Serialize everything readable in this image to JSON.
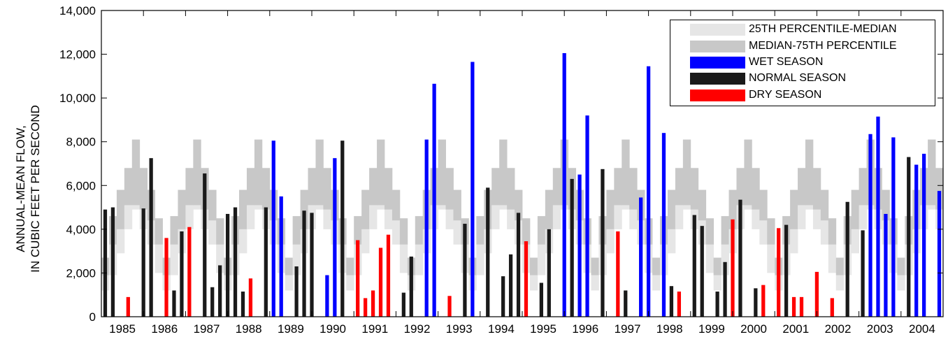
{
  "chart_data": {
    "type": "bar",
    "title": "",
    "xlabel": "",
    "ylabel_lines": [
      "ANNUAL-MEAN FLOW,",
      "IN CUBIC FEET PER SECOND"
    ],
    "ylim": [
      0,
      14000
    ],
    "yticks": [
      "0",
      "2,000",
      "4,000",
      "6,000",
      "8,000",
      "10,000",
      "12,000",
      "14,000"
    ],
    "x_labels": [
      "1985",
      "1986",
      "1987",
      "1988",
      "1989",
      "1990",
      "1991",
      "1992",
      "1993",
      "1994",
      "1995",
      "1996",
      "1997",
      "1998",
      "1999",
      "2000",
      "2001",
      "2002",
      "2003",
      "2004"
    ],
    "percentile_bands": {
      "p25": [
        1200,
        1900,
        2900,
        4000,
        4900,
        4000,
        3300,
        2000
      ],
      "median": [
        1900,
        3300,
        4000,
        5100,
        5100,
        4900,
        4400,
        3300
      ],
      "p75": [
        2700,
        4600,
        5800,
        6800,
        8100,
        6800,
        5800,
        4500
      ]
    },
    "series": [
      {
        "name": "WET SEASON",
        "color": "#0000ff"
      },
      {
        "name": "NORMAL SEASON",
        "color": "#1a1a1a"
      },
      {
        "name": "DRY SEASON",
        "color": "#ff0000"
      }
    ],
    "band_legend": [
      {
        "name": "25TH PERCENTILE-MEDIAN",
        "color": "#e6e6e6"
      },
      {
        "name": "MEDIAN-75TH PERCENTILE",
        "color": "#c8c8c8"
      }
    ],
    "bars": [
      {
        "v": 4900,
        "s": 1
      },
      {
        "v": 5000,
        "s": 1
      },
      {
        "v": 0,
        "s": 1
      },
      {
        "v": 900,
        "s": 2
      },
      {
        "v": 0,
        "s": 1
      },
      {
        "v": 4950,
        "s": 1
      },
      {
        "v": 7250,
        "s": 1
      },
      {
        "v": 0,
        "s": 1
      },
      {
        "v": 3600,
        "s": 2
      },
      {
        "v": 1200,
        "s": 1
      },
      {
        "v": 3900,
        "s": 1
      },
      {
        "v": 4100,
        "s": 2
      },
      {
        "v": 0,
        "s": 1
      },
      {
        "v": 6550,
        "s": 1
      },
      {
        "v": 1350,
        "s": 1
      },
      {
        "v": 2350,
        "s": 1
      },
      {
        "v": 4700,
        "s": 1
      },
      {
        "v": 5000,
        "s": 1
      },
      {
        "v": 1150,
        "s": 1
      },
      {
        "v": 1750,
        "s": 2
      },
      {
        "v": 0,
        "s": 1
      },
      {
        "v": 5000,
        "s": 1
      },
      {
        "v": 8050,
        "s": 0
      },
      {
        "v": 5500,
        "s": 0
      },
      {
        "v": 0,
        "s": 1
      },
      {
        "v": 2300,
        "s": 1
      },
      {
        "v": 4850,
        "s": 1
      },
      {
        "v": 4750,
        "s": 1
      },
      {
        "v": 0,
        "s": 1
      },
      {
        "v": 1900,
        "s": 0
      },
      {
        "v": 7250,
        "s": 0
      },
      {
        "v": 8050,
        "s": 1
      },
      {
        "v": 0,
        "s": 1
      },
      {
        "v": 3500,
        "s": 2
      },
      {
        "v": 850,
        "s": 2
      },
      {
        "v": 1200,
        "s": 2
      },
      {
        "v": 3150,
        "s": 2
      },
      {
        "v": 3750,
        "s": 2
      },
      {
        "v": 0,
        "s": 1
      },
      {
        "v": 1100,
        "s": 1
      },
      {
        "v": 2750,
        "s": 1
      },
      {
        "v": 0,
        "s": 1
      },
      {
        "v": 8100,
        "s": 0
      },
      {
        "v": 10650,
        "s": 0
      },
      {
        "v": 0,
        "s": 1
      },
      {
        "v": 950,
        "s": 2
      },
      {
        "v": 0,
        "s": 1
      },
      {
        "v": 4250,
        "s": 1
      },
      {
        "v": 11650,
        "s": 0
      },
      {
        "v": 0,
        "s": 1
      },
      {
        "v": 5900,
        "s": 1
      },
      {
        "v": 0,
        "s": 1
      },
      {
        "v": 1850,
        "s": 1
      },
      {
        "v": 2850,
        "s": 1
      },
      {
        "v": 4750,
        "s": 1
      },
      {
        "v": 3450,
        "s": 2
      },
      {
        "v": 0,
        "s": 1
      },
      {
        "v": 1550,
        "s": 1
      },
      {
        "v": 4000,
        "s": 1
      },
      {
        "v": 0,
        "s": 1
      },
      {
        "v": 12050,
        "s": 0
      },
      {
        "v": 6300,
        "s": 1
      },
      {
        "v": 6500,
        "s": 0
      },
      {
        "v": 9200,
        "s": 0
      },
      {
        "v": 0,
        "s": 1
      },
      {
        "v": 6750,
        "s": 1
      },
      {
        "v": 0,
        "s": 1
      },
      {
        "v": 3900,
        "s": 2
      },
      {
        "v": 1200,
        "s": 1
      },
      {
        "v": 0,
        "s": 1
      },
      {
        "v": 5450,
        "s": 0
      },
      {
        "v": 11450,
        "s": 0
      },
      {
        "v": 0,
        "s": 1
      },
      {
        "v": 8400,
        "s": 0
      },
      {
        "v": 1400,
        "s": 1
      },
      {
        "v": 1150,
        "s": 2
      },
      {
        "v": 0,
        "s": 1
      },
      {
        "v": 4650,
        "s": 1
      },
      {
        "v": 4150,
        "s": 1
      },
      {
        "v": 0,
        "s": 1
      },
      {
        "v": 1150,
        "s": 1
      },
      {
        "v": 2500,
        "s": 1
      },
      {
        "v": 4450,
        "s": 2
      },
      {
        "v": 5350,
        "s": 1
      },
      {
        "v": 0,
        "s": 1
      },
      {
        "v": 1300,
        "s": 1
      },
      {
        "v": 1450,
        "s": 2
      },
      {
        "v": 0,
        "s": 1
      },
      {
        "v": 4050,
        "s": 2
      },
      {
        "v": 4200,
        "s": 1
      },
      {
        "v": 900,
        "s": 2
      },
      {
        "v": 900,
        "s": 2
      },
      {
        "v": 0,
        "s": 1
      },
      {
        "v": 2050,
        "s": 2
      },
      {
        "v": 0,
        "s": 1
      },
      {
        "v": 850,
        "s": 2
      },
      {
        "v": 0,
        "s": 1
      },
      {
        "v": 5250,
        "s": 1
      },
      {
        "v": 0,
        "s": 1
      },
      {
        "v": 3950,
        "s": 1
      },
      {
        "v": 8350,
        "s": 0
      },
      {
        "v": 9150,
        "s": 0
      },
      {
        "v": 4700,
        "s": 0
      },
      {
        "v": 8200,
        "s": 0
      },
      {
        "v": 0,
        "s": 1
      },
      {
        "v": 7300,
        "s": 1
      },
      {
        "v": 6950,
        "s": 0
      },
      {
        "v": 7450,
        "s": 0
      },
      {
        "v": 0,
        "s": 1
      },
      {
        "v": 5750,
        "s": 0
      }
    ]
  }
}
